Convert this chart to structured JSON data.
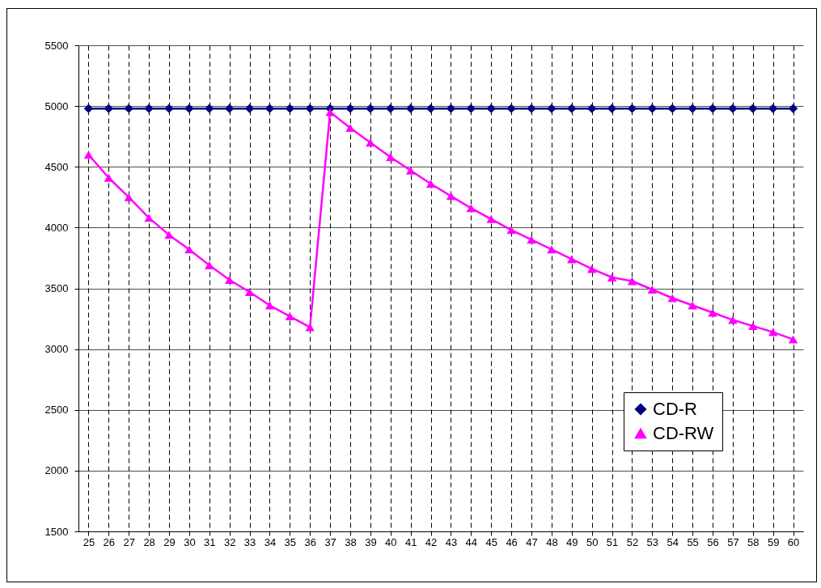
{
  "chart_data": {
    "type": "line",
    "categories": [
      "25",
      "26",
      "27",
      "28",
      "29",
      "30",
      "31",
      "32",
      "33",
      "34",
      "35",
      "36",
      "37",
      "38",
      "39",
      "40",
      "41",
      "42",
      "43",
      "44",
      "45",
      "46",
      "47",
      "48",
      "49",
      "50",
      "51",
      "52",
      "53",
      "54",
      "55",
      "56",
      "57",
      "58",
      "59",
      "60"
    ],
    "series": [
      {
        "name": "CD-R",
        "color": "#000080",
        "marker": "diamond",
        "values": [
          4980,
          4980,
          4980,
          4980,
          4980,
          4980,
          4980,
          4980,
          4980,
          4980,
          4980,
          4980,
          4980,
          4980,
          4980,
          4980,
          4980,
          4980,
          4980,
          4980,
          4980,
          4980,
          4980,
          4980,
          4980,
          4980,
          4980,
          4980,
          4980,
          4980,
          4980,
          4980,
          4980,
          4980,
          4980,
          4980
        ]
      },
      {
        "name": "CD-RW",
        "color": "#ff00ff",
        "marker": "triangle",
        "values": [
          4600,
          4410,
          4250,
          4080,
          3940,
          3820,
          3690,
          3570,
          3470,
          3360,
          3270,
          3180,
          4950,
          4820,
          4700,
          4580,
          4470,
          4360,
          4260,
          4160,
          4070,
          3980,
          3900,
          3820,
          3740,
          3660,
          3590,
          3560,
          3490,
          3420,
          3360,
          3300,
          3240,
          3190,
          3140,
          3080
        ]
      }
    ],
    "ylim": [
      1500,
      5500
    ],
    "yticks": [
      1500,
      2000,
      2500,
      3000,
      3500,
      4000,
      4500,
      5000,
      5500
    ],
    "grid": true,
    "legend": "bottom right"
  }
}
